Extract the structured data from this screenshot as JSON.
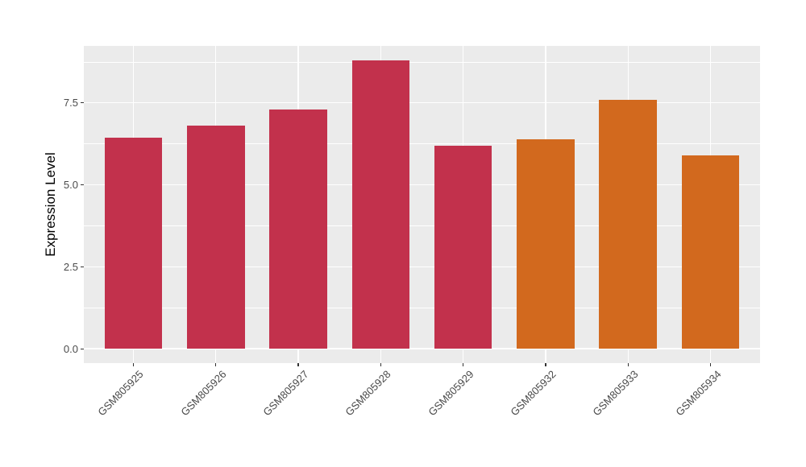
{
  "chart_data": {
    "type": "bar",
    "title": "",
    "xlabel": "",
    "ylabel": "Expression Level",
    "categories": [
      "GSM805925",
      "GSM805926",
      "GSM805927",
      "GSM805928",
      "GSM805929",
      "GSM805932",
      "GSM805933",
      "GSM805934"
    ],
    "values": [
      6.45,
      6.8,
      7.3,
      8.8,
      6.2,
      6.4,
      7.6,
      5.9
    ],
    "bar_colors": [
      "#C2314C",
      "#C2314C",
      "#C2314C",
      "#C2314C",
      "#C2314C",
      "#D2691E",
      "#D2691E",
      "#D2691E"
    ],
    "ylim": [
      -0.44,
      9.24
    ],
    "yticks": [
      {
        "label": "0.0",
        "value": 0
      },
      {
        "label": "2.5",
        "value": 2.5
      },
      {
        "label": "5.0",
        "value": 5
      },
      {
        "label": "7.5",
        "value": 7.5
      }
    ],
    "yticks_minor": [
      1.25,
      3.75,
      6.25,
      8.75
    ],
    "bar_width_fraction": 0.7,
    "x_axis_label_angle_deg": 45,
    "legend_position": "none",
    "grid": "white major + minor horizontal lines, white major vertical lines at category centers",
    "colors": {
      "panel_background": "#EBEBEB",
      "figure_background": "#FFFFFF",
      "gridline": "#FFFFFF",
      "axis_text": "#4A4A4A",
      "axis_title": "#000000",
      "tick_mark": "#333333"
    }
  }
}
